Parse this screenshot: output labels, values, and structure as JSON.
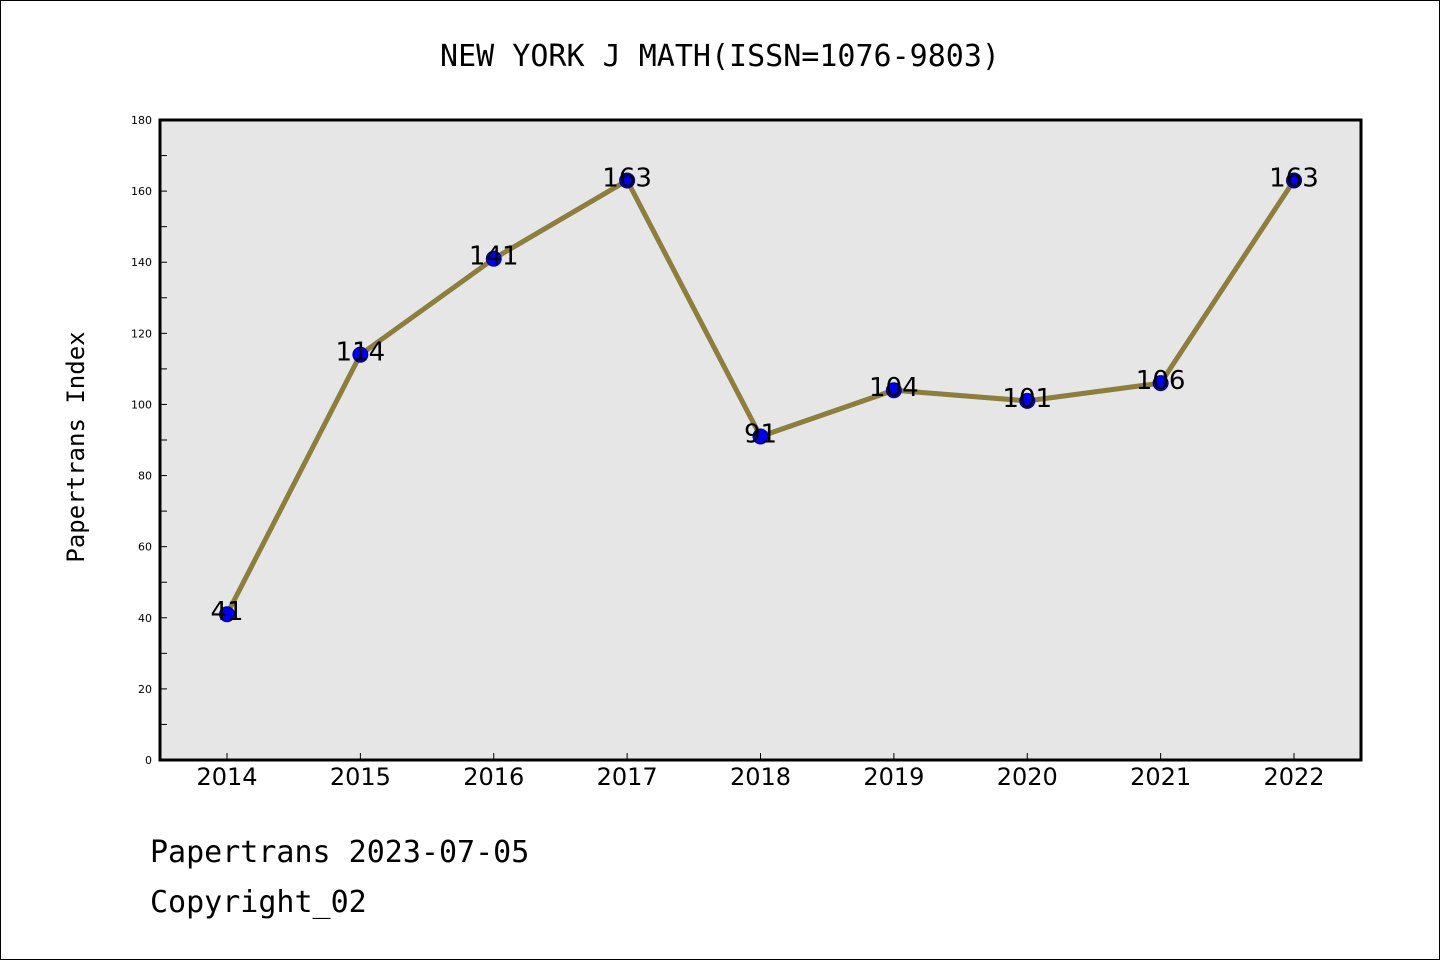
{
  "chart_data": {
    "type": "line",
    "title": "NEW YORK J MATH(ISSN=1076-9803)",
    "xlabel": "",
    "ylabel": "Papertrans Index",
    "categories": [
      "2014",
      "2015",
      "2016",
      "2017",
      "2018",
      "2019",
      "2020",
      "2021",
      "2022"
    ],
    "values": [
      41,
      114,
      141,
      163,
      91,
      104,
      101,
      106,
      163
    ],
    "data_labels": [
      "41",
      "114",
      "141",
      "163",
      "91",
      "104",
      "101",
      "106",
      "163"
    ],
    "ylim": [
      0,
      180
    ],
    "y_ticks": [
      0,
      20,
      40,
      60,
      80,
      100,
      120,
      140,
      160,
      180
    ],
    "grid": false,
    "legend": "none",
    "colors": {
      "line": "#8c7e3c",
      "marker": "#0000ee",
      "marker_edge": "#00008b",
      "plot_background": "#e6e6e6"
    }
  },
  "footer": {
    "line1": "Papertrans 2023-07-05",
    "line2": "Copyright_02"
  }
}
